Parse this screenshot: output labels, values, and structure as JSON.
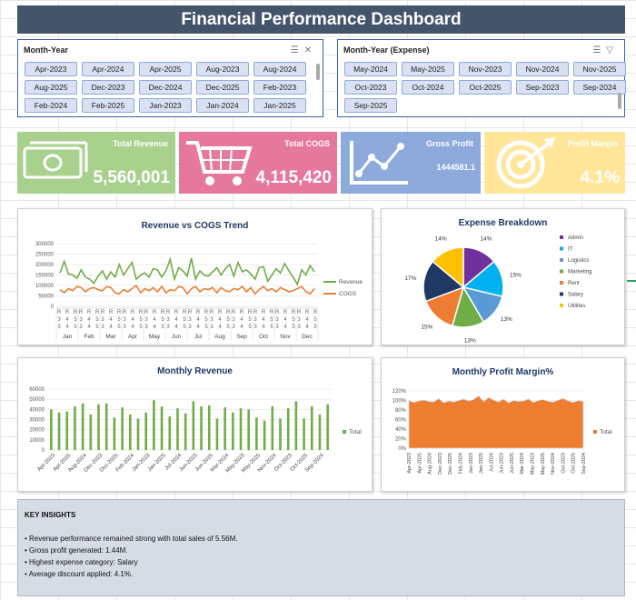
{
  "title": "Financial Performance Dashboard",
  "slicers": [
    {
      "title": "Month-Year",
      "items": [
        "Apr-2023",
        "Apr-2024",
        "Apr-2025",
        "Aug-2023",
        "Aug-2024",
        "Aug-2025",
        "Dec-2023",
        "Dec-2024",
        "Dec-2025",
        "Feb-2023",
        "Feb-2024",
        "Feb-2025",
        "Jan-2023",
        "Jan-2024",
        "Jan-2025"
      ]
    },
    {
      "title": "Month-Year (Expense)",
      "items": [
        "May-2024",
        "May-2025",
        "Nov-2023",
        "Nov-2024",
        "Nov-2025",
        "Oct-2023",
        "Oct-2024",
        "Oct-2025",
        "Sep-2023",
        "Sep-2024",
        "Sep-2025"
      ]
    }
  ],
  "kpis": [
    {
      "label": "Total Revenue",
      "value": "5,560,001",
      "color": "#a9d18e",
      "icon": "money-icon"
    },
    {
      "label": "Total COGS",
      "value": "4,115,420",
      "color": "#e6799b",
      "icon": "cart-icon"
    },
    {
      "label": "Gross Profit",
      "value": "1444581.1",
      "color": "#8ea9db",
      "icon": "trend-icon"
    },
    {
      "label": "Profit Margin",
      "value": "4.1%",
      "color": "#ffe699",
      "icon": "target-icon"
    }
  ],
  "chart_data": [
    {
      "type": "line",
      "title": "Revenue vs COGS Trend",
      "ylim": [
        0,
        300000
      ],
      "yticks": [
        "300000",
        "250000",
        "200000",
        "150000",
        "100000",
        "50000",
        "0"
      ],
      "x_top_labels": [
        "2023",
        "2024",
        "2025"
      ],
      "month_labels": [
        "Jan",
        "Feb",
        "Mar",
        "Apr",
        "May",
        "Jun",
        "Jul",
        "Aug",
        "Sep",
        "Oct",
        "Nov",
        "Dec"
      ],
      "series": [
        {
          "name": "Revenue",
          "color": "#70ad47",
          "values": [
            160000,
            215000,
            155000,
            150000,
            135000,
            175000,
            140000,
            130000,
            110000,
            145000,
            170000,
            130000,
            165000,
            140000,
            200000,
            150000,
            180000,
            210000,
            130000,
            150000,
            160000,
            140000,
            180000,
            175000,
            140000,
            170000,
            225000,
            130000,
            185000,
            170000,
            145000,
            230000,
            130000,
            170000,
            150000,
            145000,
            165000,
            185000,
            150000,
            180000,
            200000,
            145000,
            210000,
            165000,
            175000,
            155000,
            130000,
            185000,
            190000,
            120000,
            150000,
            180000,
            160000,
            205000,
            170000,
            140000,
            105000,
            175000,
            150000,
            195000,
            165000
          ]
        },
        {
          "name": "COGS",
          "color": "#ed7d31",
          "values": [
            80000,
            65000,
            85000,
            75000,
            95000,
            90000,
            70000,
            85000,
            90000,
            80000,
            75000,
            95000,
            90000,
            65000,
            60000,
            80000,
            70000,
            85000,
            100000,
            65000,
            85000,
            75000,
            90000,
            70000,
            95000,
            65000,
            80000,
            75000,
            95000,
            90000,
            60000,
            85000,
            95000,
            70000,
            85000,
            80000,
            90000,
            65000,
            90000,
            75000,
            70000,
            85000,
            80000,
            95000,
            70000,
            90000,
            60000,
            80000,
            95000,
            75000,
            85000,
            70000,
            90000,
            80000,
            70000,
            75000,
            85000,
            95000,
            70000,
            60000,
            85000
          ]
        }
      ]
    },
    {
      "type": "pie",
      "title": "Expense Breakdown",
      "categories": [
        "Admin",
        "IT",
        "Logistics",
        "Marketing",
        "Rent",
        "Salary",
        "Utilities"
      ],
      "colors": [
        "#7030a0",
        "#00b0f0",
        "#5b9bd5",
        "#70ad47",
        "#ed7d31",
        "#1f3864",
        "#ffc000"
      ],
      "values": [
        14,
        15,
        13,
        13,
        15,
        17,
        14
      ],
      "labels": [
        "14%",
        "15%",
        "13%",
        "13%",
        "15%",
        "17%",
        "14%"
      ]
    },
    {
      "type": "bar",
      "title": "Monthly Revenue",
      "ylim": [
        0,
        60000
      ],
      "yticks": [
        "60000",
        "50000",
        "40000",
        "30000",
        "20000",
        "10000",
        "0"
      ],
      "series": [
        {
          "name": "Total",
          "color": "#70ad47",
          "values": [
            40000,
            37000,
            38000,
            43000,
            46000,
            35000,
            45000,
            46000,
            32000,
            42000,
            35000,
            31000,
            37000,
            49000,
            43000,
            33000,
            41000,
            36000,
            48000,
            43000,
            44000,
            31000,
            42000,
            37000,
            41000,
            40000,
            32000,
            29000,
            43000,
            31000,
            41000,
            48000,
            31000,
            43000,
            35000,
            45000
          ]
        }
      ],
      "tick_labels": [
        "Apr-2023",
        "Apr-2025",
        "Aug-2024",
        "Dec-2023",
        "Dec-2025",
        "Feb-2024",
        "Jan-2023",
        "Jan-2025",
        "Jul-2024",
        "Jun-2023",
        "Jun-2025",
        "Mar-2024",
        "May-2023",
        "May-2025",
        "Nov-2024",
        "Oct-2023",
        "Oct-2025",
        "Sep-2024"
      ]
    },
    {
      "type": "area",
      "title": "Monthly Profit Margin%",
      "ylim": [
        0,
        120
      ],
      "yticks": [
        "120%",
        "100%",
        "80%",
        "60%",
        "40%",
        "20%",
        "0%"
      ],
      "series": [
        {
          "name": "Total",
          "color": "#ed7d31",
          "values": [
            100,
            96,
            99,
            101,
            98,
            97,
            104,
            95,
            99,
            97,
            100,
            103,
            99,
            102,
            110,
            98,
            106,
            101,
            97,
            103,
            95,
            100,
            98,
            99,
            103,
            96,
            100,
            102,
            98,
            97,
            101,
            104,
            99,
            96,
            100,
            98
          ]
        }
      ],
      "tick_labels": [
        "Apr-2023",
        "Apr-2025",
        "Aug-2024",
        "Dec-2023",
        "Dec-2025",
        "Feb-2024",
        "Jan-2023",
        "Jan-2025",
        "Jul-2024",
        "Jun-2023",
        "Jun-2025",
        "Mar-2024",
        "May-2023",
        "May-2025",
        "Nov-2024",
        "Oct-2023",
        "Oct-2025",
        "Sep-2024"
      ]
    }
  ],
  "insights": {
    "title": "KEY INSIGHTS",
    "items": [
      "• Revenue performance remained strong with total sales of 5.56M.",
      "• Gross profit generated: 1.44M.",
      "• Highest expense category: Salary",
      "• Average discount applied: 4.1%."
    ]
  }
}
